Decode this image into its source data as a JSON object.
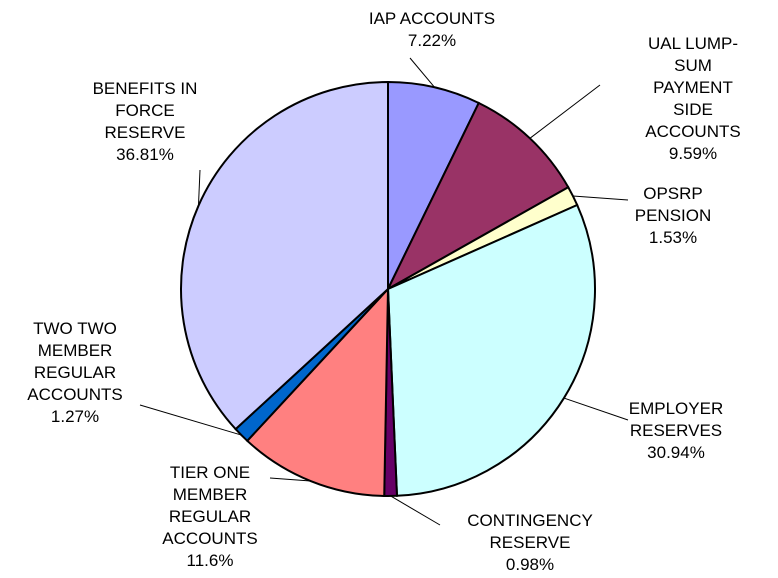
{
  "chart_data": {
    "type": "pie",
    "categories": [
      "IAP ACCOUNTS",
      "UAL LUMP-SUM\nPAYMENT SIDE\nACCOUNTS",
      "OPSRP\nPENSION",
      "EMPLOYER\nRESERVES",
      "CONTINGENCY\nRESERVE",
      "TIER ONE\nMEMBER\nREGULAR\nACCOUNTS",
      "TWO TWO\nMEMBER\nREGULAR\nACCOUNTS",
      "BENEFITS IN\nFORCE\nRESERVE"
    ],
    "values": [
      7.22,
      9.59,
      1.53,
      30.94,
      0.98,
      11.6,
      1.27,
      36.81
    ],
    "value_labels": [
      "7.22%",
      "9.59%",
      "1.53%",
      "30.94%",
      "0.98%",
      "11.6%",
      "1.27%",
      "36.81%"
    ],
    "colors": [
      "#9999ff",
      "#993366",
      "#ffffcc",
      "#ccffff",
      "#660066",
      "#ff8080",
      "#0066cc",
      "#ccccff"
    ]
  }
}
